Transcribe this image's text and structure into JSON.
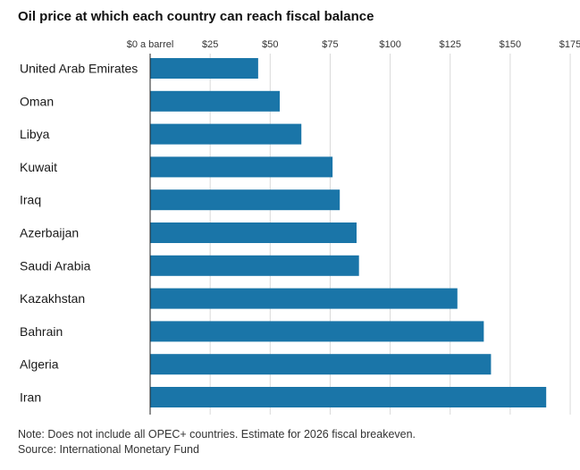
{
  "chart_data": {
    "type": "bar",
    "orientation": "horizontal",
    "title": "Oil price at which each country can reach fiscal balance",
    "xlabel": "",
    "ylabel": "",
    "xlim": [
      0,
      175
    ],
    "x_ticks": [
      0,
      25,
      50,
      75,
      100,
      125,
      150,
      175
    ],
    "x_tick_labels": [
      "$0 a barrel",
      "$25",
      "$50",
      "$75",
      "$100",
      "$125",
      "$150",
      "$175"
    ],
    "grid": true,
    "categories": [
      "United Arab Emirates",
      "Oman",
      "Libya",
      "Kuwait",
      "Iraq",
      "Azerbaijan",
      "Saudi Arabia",
      "Kazakhstan",
      "Bahrain",
      "Algeria",
      "Iran"
    ],
    "values": [
      45,
      54,
      63,
      76,
      79,
      86,
      87,
      128,
      139,
      142,
      165
    ],
    "bar_color": "#1a75a8"
  },
  "notes": {
    "note": "Note: Does not include all OPEC+ countries. Estimate for 2026 fiscal breakeven.",
    "source": "Source: International Monetary Fund"
  }
}
